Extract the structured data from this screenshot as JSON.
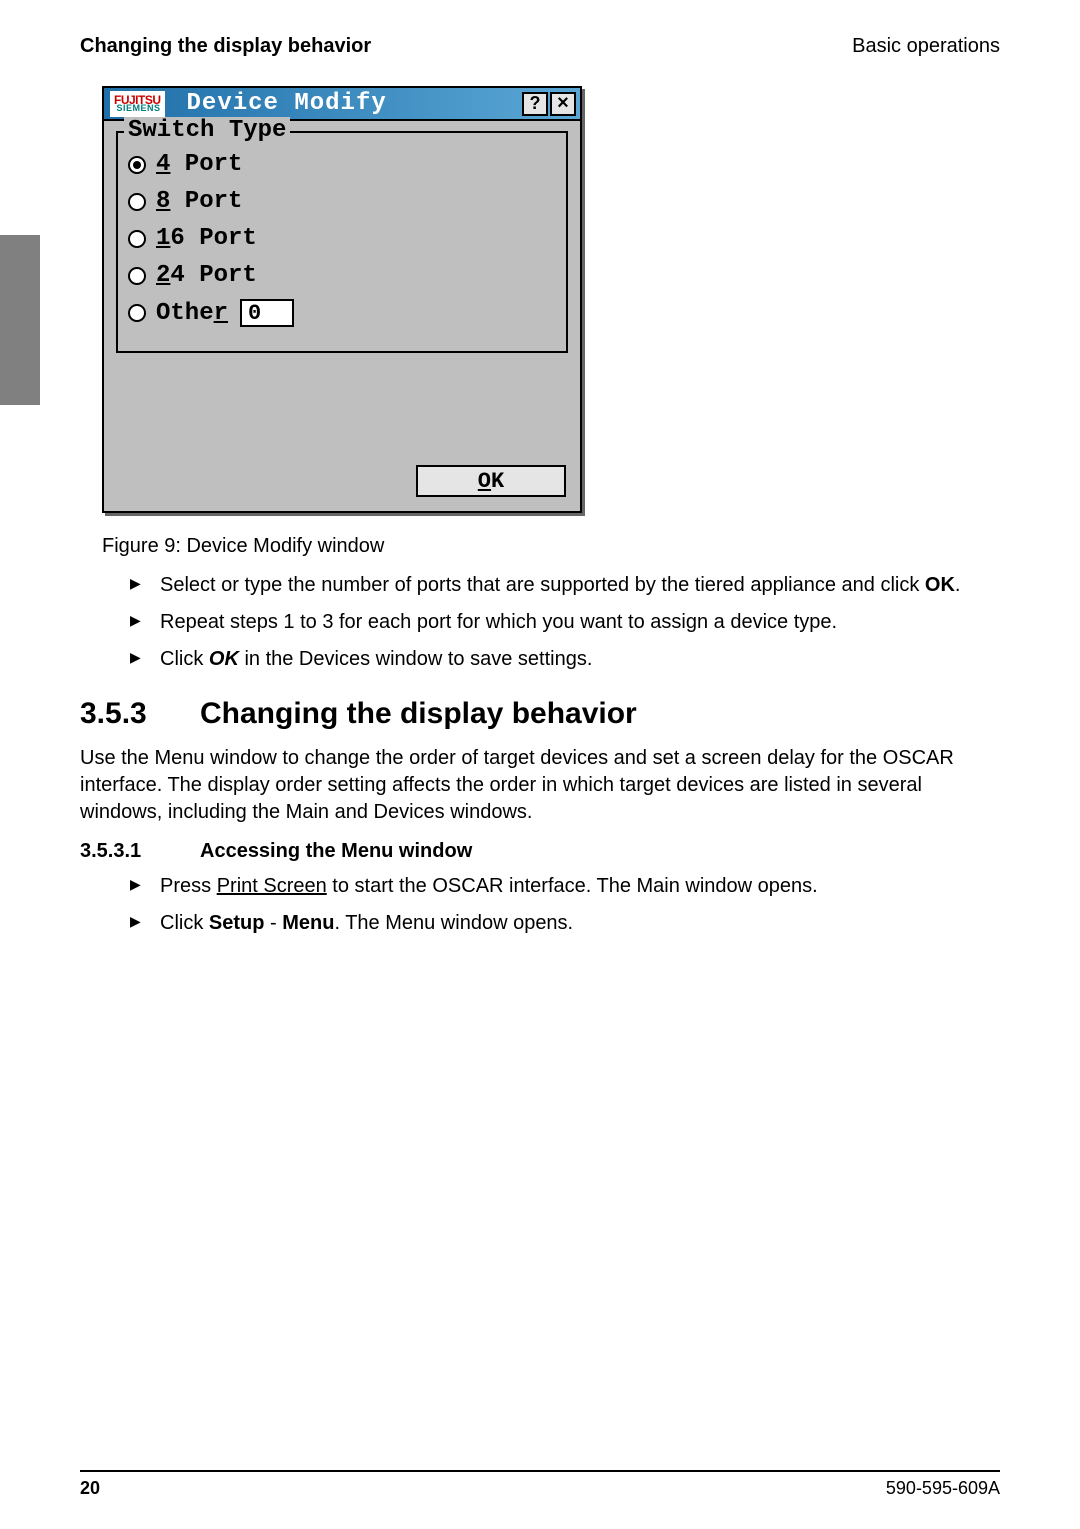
{
  "header": {
    "left": "Changing the display behavior",
    "right": "Basic operations"
  },
  "dialog": {
    "logo_line1": "FUJITSU",
    "logo_line2": "SIEMENS",
    "title": "Device Modify",
    "help_glyph": "?",
    "close_glyph": "×",
    "legend": "Switch Type",
    "options": {
      "opt4": {
        "prefix": "4",
        "rest": " Port",
        "selected": true
      },
      "opt8": {
        "prefix": "8",
        "rest": " Port",
        "selected": false
      },
      "opt16": {
        "prefix": "1",
        "rest": "6 Port",
        "selected": false
      },
      "opt24": {
        "prefix": "2",
        "rest": "4 Port",
        "selected": false
      },
      "other": {
        "prefix_pre": "Othe",
        "prefix_ul": "r",
        "value": "0",
        "selected": false
      }
    },
    "ok_ul": "O",
    "ok_rest": "K"
  },
  "caption": "Figure 9: Device Modify window",
  "bullets1": {
    "b1a": "Select or type the number of ports that are supported by the tiered appliance and click ",
    "b1b": "OK",
    "b1c": ".",
    "b2": "Repeat steps 1 to 3 for each port for which you want to assign a device type.",
    "b3a": "Click ",
    "b3b": "OK",
    "b3c": " in the Devices window to save settings."
  },
  "section": {
    "num": "3.5.3",
    "title": "Changing the display behavior",
    "para": "Use the Menu window to change the order of target devices and set a screen delay for the OSCAR interface. The display order setting affects the order in which target devices are listed in several windows, including the Main and Devices windows."
  },
  "subsection": {
    "num": "3.5.3.1",
    "title": "Accessing the Menu window"
  },
  "bullets2": {
    "b1a": "Press ",
    "b1b": "Print Screen",
    "b1c": " to start the OSCAR interface. The Main window opens.",
    "b2a": "Click ",
    "b2b": "Setup",
    "b2c": " - ",
    "b2d": "Menu",
    "b2e": ". The Menu window opens."
  },
  "footer": {
    "page": "20",
    "doc": "590-595-609A"
  }
}
